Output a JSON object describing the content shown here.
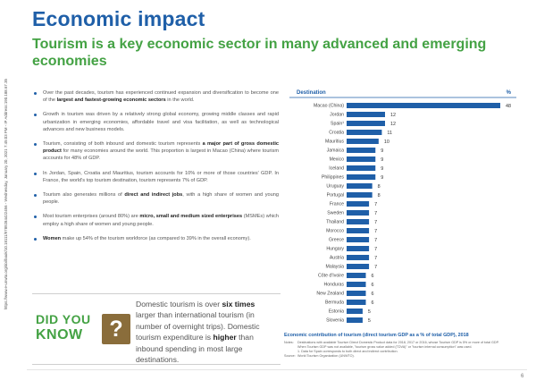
{
  "side_note": "https://www.e-unwto.org/doi/book/10.18111/9789284422456 - Wednesday, January 20, 2021 7:45:03 PM - IP Address:190.188.67.35",
  "title": "Economic impact",
  "subtitle": "Tourism is a key economic sector in many advanced and emerging economies",
  "bullets": [
    {
      "parts": [
        {
          "t": "Over the past decades, tourism has experienced continued expansion and diversification to become one of the "
        },
        {
          "t": "largest and fastest-growing economic sectors",
          "b": true
        },
        {
          "t": " in the world."
        }
      ]
    },
    {
      "parts": [
        {
          "t": "Growth in tourism was driven by a relatively strong global economy, growing middle classes and rapid urbanization in emerging economies, affordable travel and visa facilitation, as well as technological advances and new business models."
        }
      ]
    },
    {
      "parts": [
        {
          "t": "Tourism, consisting of both inbound and domestic tourism represents "
        },
        {
          "t": "a major part of gross domestic product",
          "b": true
        },
        {
          "t": " for many economies around the world. This proportion is largest in Macao (China) where tourism accounts for 48% of GDP."
        }
      ]
    },
    {
      "parts": [
        {
          "t": "In Jordan, Spain, Croatia and Mauritius, tourism accounts for 10% or more of those countries' GDP. In France, the world's top tourism destination, tourism represents 7% of GDP."
        }
      ]
    },
    {
      "parts": [
        {
          "t": "Tourism also generates millions of "
        },
        {
          "t": "direct and indirect jobs",
          "b": true
        },
        {
          "t": ", with a high share of women and young people."
        }
      ]
    },
    {
      "parts": [
        {
          "t": "Most tourism enterprises (around 80%) are "
        },
        {
          "t": "micro, small and medium sized enterprises",
          "b": true
        },
        {
          "t": " (MSMEs) which employ a high share of women and young people."
        }
      ]
    },
    {
      "parts": [
        {
          "t": "Women",
          "b": true
        },
        {
          "t": " make up 54% of the tourism workforce (as compared to 39% in the overall economy)."
        }
      ]
    }
  ],
  "did_you_know": {
    "line1": "DID YOU",
    "line2": "KNOW",
    "mark": "?",
    "text_parts": [
      {
        "t": "Domestic tourism is over "
      },
      {
        "t": "six times",
        "b": true
      },
      {
        "t": " larger than international tourism (in number of overnight trips). Domestic tourism expenditure is "
      },
      {
        "t": "higher",
        "b": true
      },
      {
        "t": " than inbound spending in most large destinations."
      }
    ]
  },
  "chart_data": {
    "type": "bar",
    "orientation": "horizontal",
    "header_left": "Destination",
    "header_right": "%",
    "categories": [
      "Macao (China)",
      "Jordan",
      "Spain¹",
      "Croatia",
      "Mauritius",
      "Jamaica",
      "Mexico",
      "Iceland",
      "Philippines",
      "Uruguay",
      "Portugal",
      "France",
      "Sweden",
      "Thailand",
      "Morocco",
      "Greece",
      "Hungary",
      "Austria",
      "Malaysia",
      "Côte d'Ivoire",
      "Honduras",
      "New Zealand",
      "Bermuda",
      "Estonia",
      "Slovenia"
    ],
    "values": [
      48,
      12,
      12,
      11,
      10,
      9,
      9,
      9,
      9,
      8,
      8,
      7,
      7,
      7,
      7,
      7,
      7,
      7,
      7,
      6,
      6,
      6,
      6,
      5,
      5
    ],
    "xlim": [
      0,
      48
    ],
    "title": "Economic contribution of tourism (direct tourism GDP as a % of total GDP), 2018",
    "bar_color": "#1f5fa8"
  },
  "notes": [
    {
      "label": "Notes:",
      "text": "Destinations with available Tourism Direct Domestic Product data for 2018, 2017 or 2016, whose Tourism GDP is 5% or more of total GDP."
    },
    {
      "label": "",
      "text": "When Tourism GDP was not available, \"tourism gross value added (TDVA)\" or \"tourism internal consumption\" was used."
    },
    {
      "label": "",
      "text": "1. Data for Spain corresponds to both direct and indirect contribution."
    },
    {
      "label": "Source:",
      "text": "World Tourism Organization (UNWTO)."
    }
  ],
  "page_number": "6"
}
